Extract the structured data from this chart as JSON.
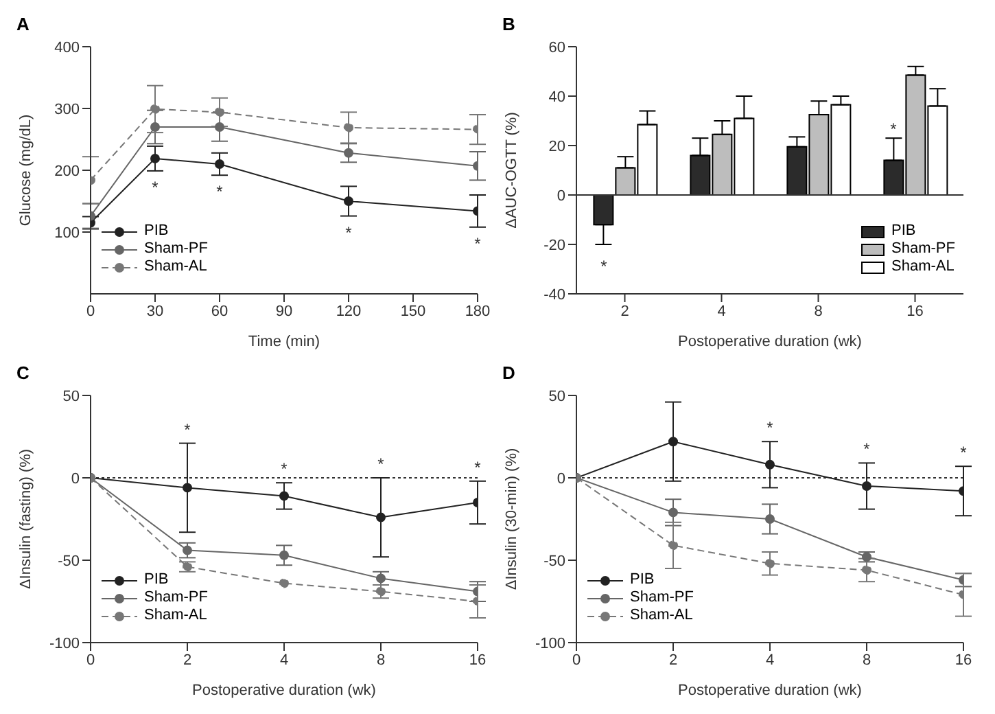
{
  "chart_data": [
    {
      "type": "line",
      "title": "A",
      "xlabel": "Time (min)",
      "ylabel": "Glucose (mg/dL)",
      "x": [
        0,
        30,
        60,
        120,
        180
      ],
      "xlim": [
        0,
        180
      ],
      "xticks": [
        0,
        30,
        60,
        90,
        120,
        150,
        180
      ],
      "ylim": [
        0,
        400
      ],
      "yticks": [
        100,
        200,
        300,
        400
      ],
      "marker": "circle",
      "legend": "bottom left",
      "series": [
        {
          "name": "PIB",
          "color": "#222222",
          "line_style": "solid",
          "values": [
            115,
            219,
            210,
            150,
            134
          ],
          "errors": [
            10,
            20,
            18,
            24,
            26
          ]
        },
        {
          "name": "Sham-PF",
          "color": "#666666",
          "line_style": "solid",
          "values": [
            126,
            270,
            270,
            228,
            207
          ],
          "errors": [
            20,
            27,
            23,
            15,
            23
          ]
        },
        {
          "name": "Sham-AL",
          "color": "#777777",
          "line_style": "dashed",
          "values": [
            184,
            299,
            294,
            269,
            266
          ],
          "errors": [
            38,
            38,
            23,
            25,
            24
          ]
        }
      ],
      "annotations": [
        {
          "text": "*",
          "x": 30,
          "y": 219
        },
        {
          "text": "*",
          "x": 60,
          "y": 210
        },
        {
          "text": "*",
          "x": 120,
          "y": 150
        },
        {
          "text": "*",
          "x": 180,
          "y": 134
        }
      ]
    },
    {
      "type": "bar",
      "title": "B",
      "xlabel": "Postoperative duration (wk)",
      "ylabel": "ΔAUC-OGTT (%)",
      "categories": [
        "2",
        "4",
        "8",
        "16"
      ],
      "ylim": [
        -40,
        60
      ],
      "yticks": [
        -40,
        -20,
        0,
        20,
        40,
        60
      ],
      "legend": "bottom right",
      "ref_lines": [
        {
          "axis": "y",
          "value": 0,
          "line_style": "solid"
        }
      ],
      "series": [
        {
          "name": "PIB",
          "color": "#2b2b2b",
          "values": [
            -12,
            16,
            19.5,
            14
          ],
          "errors": [
            8,
            7,
            4,
            9
          ]
        },
        {
          "name": "Sham-PF",
          "color": "#bdbdbd",
          "values": [
            11,
            24.5,
            32.5,
            48.5
          ],
          "errors": [
            4.5,
            5.5,
            5.5,
            3.5
          ]
        },
        {
          "name": "Sham-AL",
          "color": "#ffffff",
          "values": [
            28.5,
            31,
            36.5,
            36
          ],
          "errors": [
            5.5,
            9,
            3.5,
            7
          ]
        }
      ],
      "annotations": [
        "*",
        "*"
      ]
    },
    {
      "type": "line",
      "title": "C",
      "xlabel": "Postoperative duration (wk)",
      "ylabel": "ΔInsulin (fasting) (%)",
      "categories": [
        "0",
        "2",
        "4",
        "8",
        "16"
      ],
      "ylim": [
        -100,
        50
      ],
      "yticks": [
        -100,
        -50,
        0,
        50
      ],
      "marker": "circle",
      "legend": "bottom left",
      "ref_lines": [
        {
          "axis": "y",
          "value": 0,
          "line_style": "dotted"
        }
      ],
      "series": [
        {
          "name": "PIB",
          "color": "#222222",
          "line_style": "solid",
          "values": [
            0,
            -6,
            -11,
            -24,
            -15
          ],
          "errors": [
            null,
            27,
            8,
            24,
            13
          ]
        },
        {
          "name": "Sham-PF",
          "color": "#666666",
          "line_style": "solid",
          "values": [
            0,
            -44,
            -47,
            -61,
            -69
          ],
          "errors": [
            null,
            4.5,
            6,
            4,
            6
          ]
        },
        {
          "name": "Sham-AL",
          "color": "#777777",
          "line_style": "dashed",
          "values": [
            0,
            -54,
            -64,
            -69,
            -75
          ],
          "errors": [
            null,
            3,
            null,
            4,
            10
          ]
        }
      ],
      "annotations": [
        {
          "text": "*",
          "x": "2",
          "y": -6
        },
        {
          "text": "*",
          "x": "4",
          "y": -11
        },
        {
          "text": "*",
          "x": "8",
          "y": -24
        },
        {
          "text": "*",
          "x": "16",
          "y": -15
        }
      ]
    },
    {
      "type": "line",
      "title": "D",
      "xlabel": "Postoperative duration (wk)",
      "ylabel": "ΔInsulin (30-min) (%)",
      "categories": [
        "0",
        "2",
        "4",
        "8",
        "16"
      ],
      "ylim": [
        -100,
        50
      ],
      "yticks": [
        -100,
        -50,
        0,
        50
      ],
      "marker": "circle",
      "legend": "bottom left",
      "ref_lines": [
        {
          "axis": "y",
          "value": 0,
          "line_style": "dotted"
        }
      ],
      "series": [
        {
          "name": "PIB",
          "color": "#222222",
          "line_style": "solid",
          "values": [
            0,
            22,
            8,
            -5,
            -8
          ],
          "errors": [
            null,
            24,
            14,
            14,
            15
          ]
        },
        {
          "name": "Sham-PF",
          "color": "#666666",
          "line_style": "solid",
          "values": [
            0,
            -21,
            -25,
            -48,
            -62
          ],
          "errors": [
            null,
            8,
            9,
            3,
            4
          ]
        },
        {
          "name": "Sham-AL",
          "color": "#777777",
          "line_style": "dashed",
          "values": [
            0,
            -41,
            -52,
            -56,
            -71
          ],
          "errors": [
            null,
            14,
            7,
            7,
            13
          ]
        }
      ],
      "annotations": [
        {
          "text": "*",
          "x": "4",
          "y": 8
        },
        {
          "text": "*",
          "x": "8",
          "y": -5
        },
        {
          "text": "*",
          "x": "16",
          "y": -8
        }
      ]
    }
  ]
}
